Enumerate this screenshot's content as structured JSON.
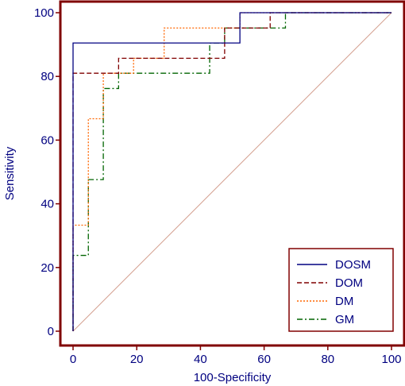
{
  "chart_data": {
    "type": "line",
    "xlabel": "100-Specificity",
    "ylabel": "Sensitivity",
    "xlim": [
      0,
      100
    ],
    "ylim": [
      0,
      100
    ],
    "xticks": [
      0,
      20,
      40,
      60,
      80,
      100
    ],
    "yticks": [
      0,
      20,
      40,
      60,
      80,
      100
    ],
    "legend_position": "bottom-right",
    "grid": false,
    "frame_color": "#800000",
    "label_color": "#000080",
    "reference_line": {
      "from": [
        0,
        0
      ],
      "to": [
        100,
        100
      ],
      "color": "#d4a090"
    },
    "series": [
      {
        "name": "DOSM",
        "color": "#000080",
        "dash": "solid",
        "points": [
          [
            0,
            0
          ],
          [
            0,
            90.5
          ],
          [
            52.4,
            90.5
          ],
          [
            52.4,
            100
          ],
          [
            100,
            100
          ]
        ]
      },
      {
        "name": "DOM",
        "color": "#800000",
        "dash": "dashed",
        "points": [
          [
            0,
            0
          ],
          [
            0,
            81
          ],
          [
            14.3,
            81
          ],
          [
            14.3,
            85.7
          ],
          [
            47.6,
            85.7
          ],
          [
            47.6,
            95.2
          ],
          [
            61.9,
            95.2
          ],
          [
            61.9,
            100
          ],
          [
            100,
            100
          ]
        ]
      },
      {
        "name": "DM",
        "color": "#ff6600",
        "dash": "dotted",
        "points": [
          [
            0,
            0
          ],
          [
            0,
            33.3
          ],
          [
            4.8,
            33.3
          ],
          [
            4.8,
            66.7
          ],
          [
            9.5,
            66.7
          ],
          [
            9.5,
            81
          ],
          [
            19,
            81
          ],
          [
            19,
            85.7
          ],
          [
            28.6,
            85.7
          ],
          [
            28.6,
            95.2
          ],
          [
            52.4,
            95.2
          ],
          [
            52.4,
            100
          ],
          [
            100,
            100
          ]
        ]
      },
      {
        "name": "GM",
        "color": "#006400",
        "dash": "dashdot",
        "points": [
          [
            0,
            0
          ],
          [
            0,
            23.8
          ],
          [
            4.8,
            23.8
          ],
          [
            4.8,
            47.6
          ],
          [
            9.5,
            47.6
          ],
          [
            9.5,
            76.2
          ],
          [
            14.3,
            76.2
          ],
          [
            14.3,
            81
          ],
          [
            42.9,
            81
          ],
          [
            42.9,
            90.5
          ],
          [
            47.6,
            90.5
          ],
          [
            47.6,
            95.2
          ],
          [
            66.7,
            95.2
          ],
          [
            66.7,
            100
          ],
          [
            100,
            100
          ]
        ]
      }
    ]
  }
}
